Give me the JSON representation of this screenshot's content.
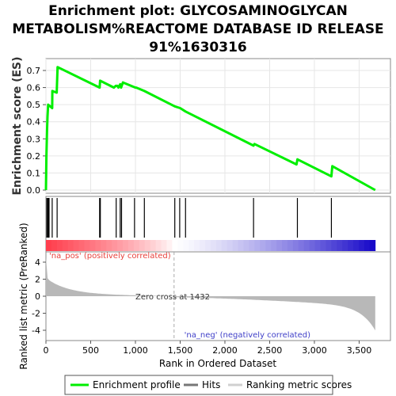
{
  "chart_data": {
    "type": "line",
    "title_lines": [
      "Enrichment plot: GLYCOSAMINOGLYCAN",
      "METABOLISM%REACTOME DATABASE ID RELEASE",
      "91%1630316"
    ],
    "es_panel": {
      "ylabel": "Enrichment score (ES)",
      "ylim": [
        0,
        0.75
      ],
      "yticks": [
        "0.0",
        "0.1",
        "0.2",
        "0.3",
        "0.4",
        "0.5",
        "0.6",
        "0.7"
      ],
      "series_name": "Enrichment profile",
      "color": "#00ee00",
      "points": [
        [
          0,
          0.0
        ],
        [
          5,
          0.2
        ],
        [
          12,
          0.35
        ],
        [
          18,
          0.43
        ],
        [
          25,
          0.5
        ],
        [
          70,
          0.48
        ],
        [
          72,
          0.58
        ],
        [
          120,
          0.57
        ],
        [
          130,
          0.72
        ],
        [
          600,
          0.6
        ],
        [
          605,
          0.64
        ],
        [
          760,
          0.6
        ],
        [
          780,
          0.61
        ],
        [
          800,
          0.61
        ],
        [
          810,
          0.6
        ],
        [
          830,
          0.62
        ],
        [
          840,
          0.6
        ],
        [
          860,
          0.63
        ],
        [
          1000,
          0.6
        ],
        [
          1010,
          0.6
        ],
        [
          1100,
          0.58
        ],
        [
          1440,
          0.49
        ],
        [
          1500,
          0.48
        ],
        [
          1560,
          0.46
        ],
        [
          2320,
          0.26
        ],
        [
          2330,
          0.27
        ],
        [
          2800,
          0.15
        ],
        [
          2810,
          0.18
        ],
        [
          3190,
          0.08
        ],
        [
          3200,
          0.14
        ],
        [
          3680,
          0.0
        ]
      ]
    },
    "hits": [
      10,
      20,
      28,
      35,
      70,
      125,
      600,
      608,
      785,
      830,
      845,
      990,
      1100,
      1440,
      1495,
      1560,
      2320,
      2810,
      3190
    ],
    "rank_panel": {
      "ylabel": "Ranked list metric (PreRanked)",
      "ylim": [
        -5,
        5
      ],
      "yticks": [
        "4",
        "2",
        "0",
        "-2",
        "-4"
      ],
      "xlabel": "Rank in Ordered Dataset",
      "xlim": [
        0,
        3850
      ],
      "xticks": [
        "0",
        "500",
        "1,000",
        "1,500",
        "2,000",
        "2,500",
        "3,000",
        "3,500"
      ],
      "zero_cross_label": "Zero cross at 1432",
      "zero_cross_rank": 1432,
      "n_genes": 3680,
      "pos_label": "'na_pos' (positively correlated)",
      "neg_label": "'na_neg' (negatively correlated)",
      "series_name": "Ranking metric scores"
    },
    "legend": [
      {
        "label": "Enrichment profile",
        "color": "#00ee00"
      },
      {
        "label": "Hits",
        "color": "#777777"
      },
      {
        "label": "Ranking metric scores",
        "color": "#d0d0d0"
      }
    ]
  }
}
